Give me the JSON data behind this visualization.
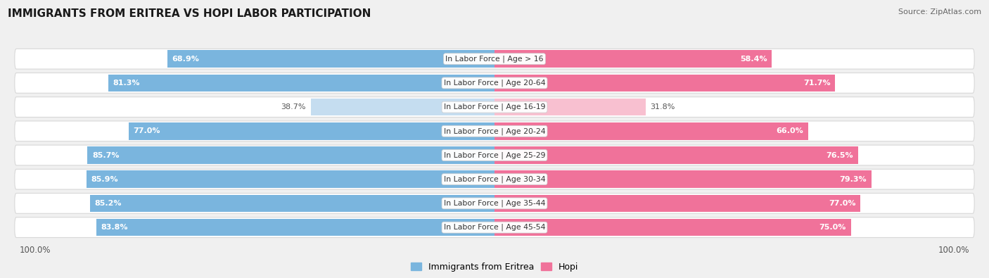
{
  "title": "IMMIGRANTS FROM ERITREA VS HOPI LABOR PARTICIPATION",
  "source": "Source: ZipAtlas.com",
  "categories": [
    "In Labor Force | Age > 16",
    "In Labor Force | Age 20-64",
    "In Labor Force | Age 16-19",
    "In Labor Force | Age 20-24",
    "In Labor Force | Age 25-29",
    "In Labor Force | Age 30-34",
    "In Labor Force | Age 35-44",
    "In Labor Force | Age 45-54"
  ],
  "eritrea_values": [
    68.9,
    81.3,
    38.7,
    77.0,
    85.7,
    85.9,
    85.2,
    83.8
  ],
  "hopi_values": [
    58.4,
    71.7,
    31.8,
    66.0,
    76.5,
    79.3,
    77.0,
    75.0
  ],
  "eritrea_color": "#7ab5de",
  "eritrea_color_light": "#c5ddf0",
  "hopi_color": "#f0729a",
  "hopi_color_light": "#f8c0d0",
  "bg_color": "#f0f0f0",
  "row_bg_color": "#ffffff",
  "row_shadow_color": "#d8d8d8",
  "label_color": "#333333",
  "white_text": "#ffffff",
  "dark_text": "#555555",
  "max_val": 100.0,
  "bar_height": 0.72,
  "legend_eritrea": "Immigrants from Eritrea",
  "legend_hopi": "Hopi"
}
